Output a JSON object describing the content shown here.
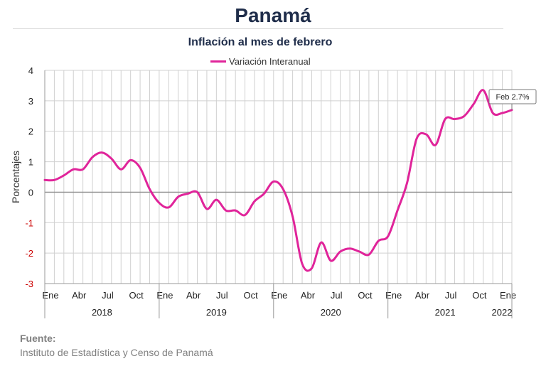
{
  "title": "Panamá",
  "subtitle": "Inflación al mes de febrero",
  "source": {
    "label": "Fuente:",
    "text": "Instituto de Estadística y Censo de Panamá"
  },
  "colors": {
    "series": "#e0249a",
    "title": "#1f2d4a",
    "grid": "#d0d0d0",
    "zero": "#8c8c8c",
    "negative_tick": "#cc0000"
  },
  "chart_data": {
    "type": "line",
    "title": "Inflación al mes de febrero",
    "ylabel": "Porcentajes",
    "xlabel": "",
    "ylim": [
      -3,
      4
    ],
    "yticks": [
      "4",
      "3",
      "2",
      "1",
      "0",
      "-1",
      "-2",
      "-3"
    ],
    "grid": true,
    "legend_position": "top-center",
    "x_start": "Ene 2018",
    "month_ticks": [
      "Ene",
      "Abr",
      "Jul",
      "Oct",
      "Ene",
      "Abr",
      "Jul",
      "Oct",
      "Ene",
      "Abr",
      "Jul",
      "Oct",
      "Ene",
      "Abr",
      "Jul",
      "Oct",
      "Ene"
    ],
    "years": [
      "2018",
      "2019",
      "2020",
      "2021",
      "2022"
    ],
    "series": [
      {
        "name": "Variación Interanual",
        "values": [
          0.4,
          0.4,
          0.55,
          0.75,
          0.75,
          1.15,
          1.3,
          1.1,
          0.75,
          1.05,
          0.8,
          0.1,
          -0.35,
          -0.5,
          -0.15,
          -0.05,
          0.0,
          -0.55,
          -0.25,
          -0.6,
          -0.6,
          -0.75,
          -0.3,
          -0.05,
          0.35,
          0.1,
          -0.8,
          -2.35,
          -2.5,
          -1.65,
          -2.25,
          -1.95,
          -1.85,
          -1.95,
          -2.05,
          -1.6,
          -1.45,
          -0.6,
          0.3,
          1.75,
          1.9,
          1.55,
          2.4,
          2.4,
          2.5,
          2.9,
          3.35,
          2.6,
          2.6,
          2.7
        ]
      }
    ],
    "annotation": {
      "text": "Feb 2.7%",
      "month": "Feb 2022",
      "value": 2.7
    }
  }
}
